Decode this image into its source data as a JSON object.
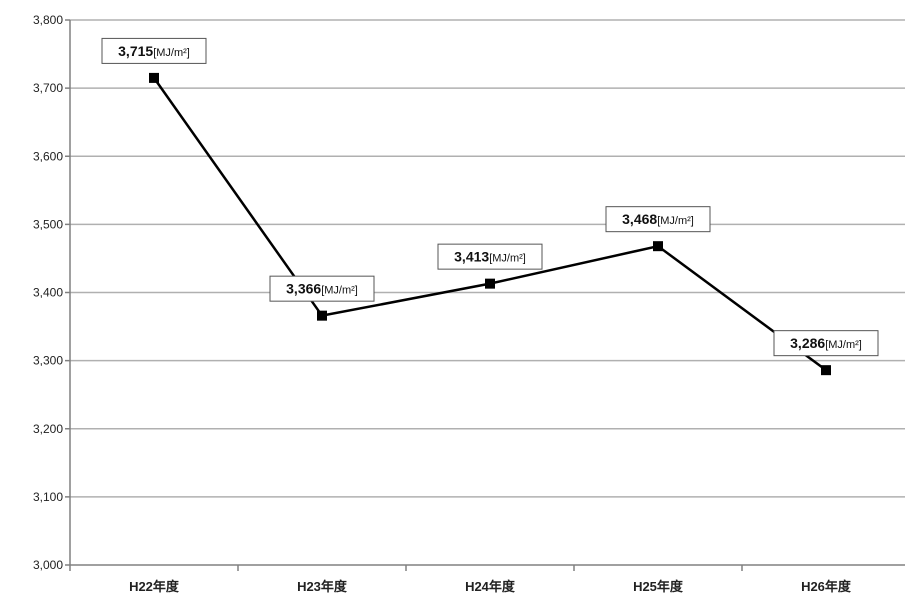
{
  "chart_data": {
    "type": "line",
    "title": "",
    "xlabel": "",
    "ylabel": "",
    "categories": [
      "H22年度",
      "H23年度",
      "H24年度",
      "H25年度",
      "H26年度"
    ],
    "series": [
      {
        "values": [
          3715,
          3366,
          3413,
          3468,
          3286
        ]
      }
    ],
    "data_labels": [
      {
        "value": "3,715",
        "unit": "[MJ/m²]"
      },
      {
        "value": "3,366",
        "unit": "[MJ/m²]"
      },
      {
        "value": "3,413",
        "unit": "[MJ/m²]"
      },
      {
        "value": "3,468",
        "unit": "[MJ/m²]"
      },
      {
        "value": "3,286",
        "unit": "[MJ/m²]"
      }
    ],
    "yticks": [
      "3,000",
      "3,100",
      "3,200",
      "3,300",
      "3,400",
      "3,500",
      "3,600",
      "3,700",
      "3,800"
    ],
    "ylim": [
      3000,
      3800
    ],
    "y_step": 100,
    "grid": true,
    "legend": "none",
    "marker": "square",
    "colors": {
      "line": "#000000",
      "grid": "#b0b0b0",
      "axis": "#808080"
    }
  }
}
